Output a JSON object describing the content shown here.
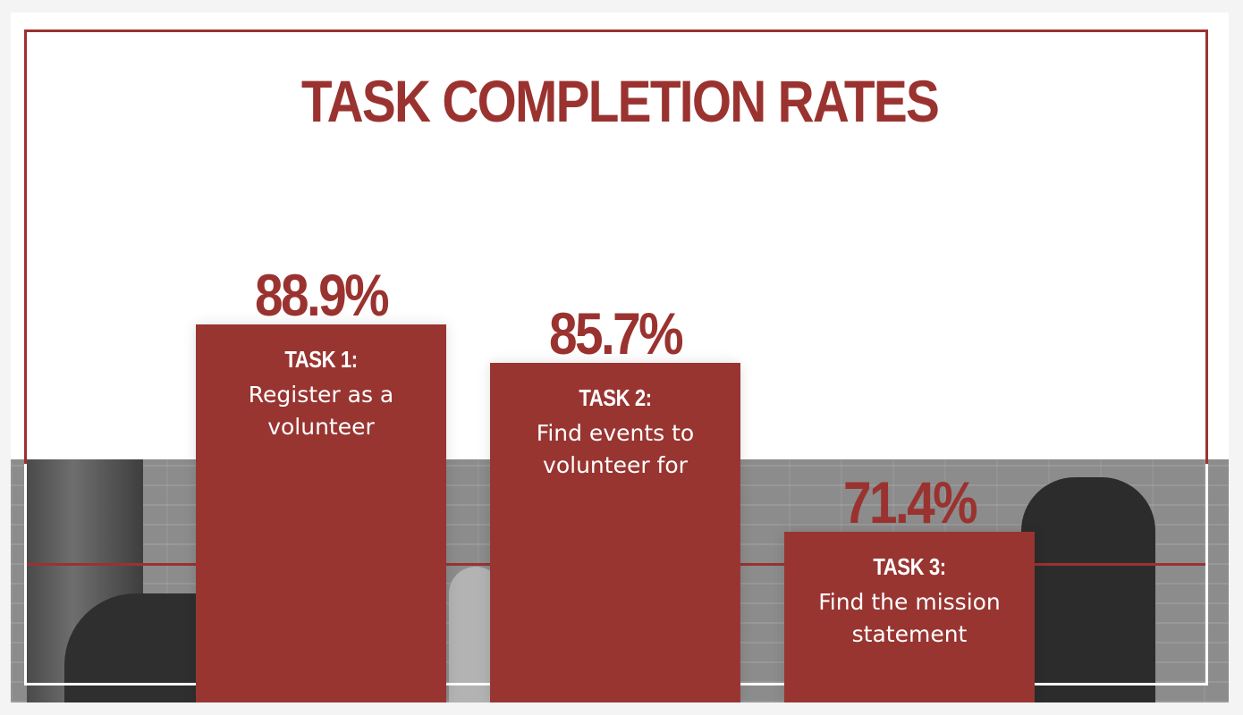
{
  "title": "TASK COMPLETION RATES",
  "colors": {
    "accent": "#9a3330",
    "bar": "#983531",
    "text_on_bar": "#ffffff"
  },
  "chart_data": {
    "type": "bar",
    "title": "TASK COMPLETION RATES",
    "categories": [
      "TASK 1:",
      "TASK 2:",
      "TASK 3:"
    ],
    "descriptions": [
      "Register as a volunteer",
      "Find events to volunteer for",
      "Find the mission statement"
    ],
    "values": [
      88.9,
      85.7,
      71.4
    ],
    "value_labels": [
      "88.9%",
      "85.7%",
      "71.4%"
    ],
    "ylim": [
      0,
      100
    ],
    "grid": false,
    "legend": "none"
  }
}
